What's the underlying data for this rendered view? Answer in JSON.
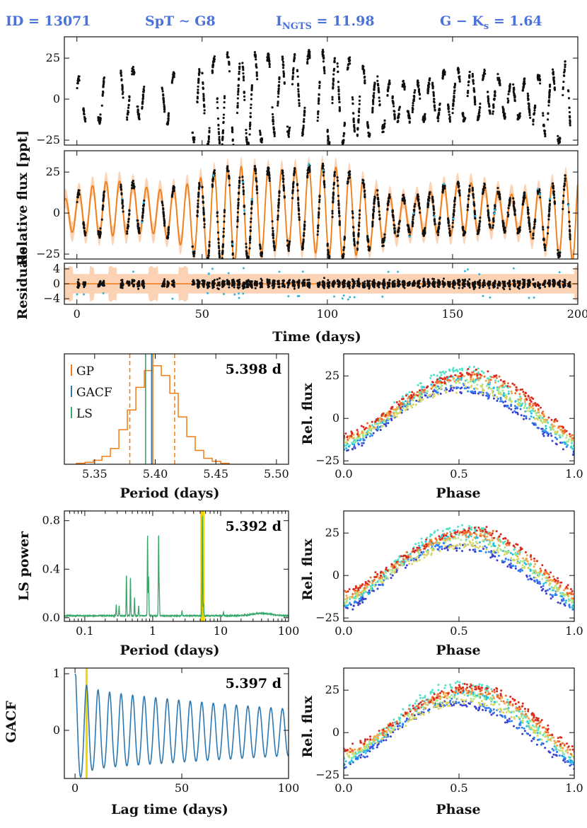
{
  "header": {
    "id_label": "ID = 13071",
    "spt_label": "SpT ∼ G8",
    "mag_label_main": "I",
    "mag_label_sub": "NGTS",
    "mag_label_value": " = 11.98",
    "color_label_g": "G − K",
    "color_label_sub": "s",
    "color_label_value": " = 1.64"
  },
  "colors": {
    "header": "#4a72d9",
    "gp": "#f07d16",
    "gp_band": "#fcd2b4",
    "gacf": "#2e78b0",
    "ls": "#3aa86b",
    "highlight": "#f2d600",
    "data": "#111111",
    "outlier": "#38b6d8"
  },
  "chart_data": [
    {
      "id": "lightcurve",
      "type": "scatter",
      "ylabel": "Relative flux [ppt]",
      "xlim": [
        -5,
        200
      ],
      "ylim": [
        -28,
        38
      ],
      "yticks": [
        -25,
        0,
        25
      ],
      "ytick_labels": [
        "−25",
        "0",
        "25"
      ],
      "observing_windows": [
        [
          0,
          1
        ],
        [
          2.5,
          3.5
        ],
        [
          8.5,
          9.5
        ],
        [
          10,
          11
        ],
        [
          17.5,
          18.5
        ],
        [
          20,
          21
        ],
        [
          22,
          23
        ],
        [
          24,
          25
        ],
        [
          26,
          27
        ],
        [
          34,
          35
        ],
        [
          36,
          37
        ],
        [
          38,
          39
        ],
        [
          46,
          47
        ],
        [
          48,
          49
        ],
        [
          50,
          51
        ],
        [
          52,
          53
        ],
        [
          54,
          55
        ],
        [
          56,
          57
        ],
        [
          58,
          59
        ],
        [
          60,
          61
        ],
        [
          62,
          63
        ],
        [
          64,
          65
        ],
        [
          66,
          67
        ],
        [
          67.5,
          68.5
        ],
        [
          69,
          70
        ],
        [
          71,
          72
        ],
        [
          73,
          74
        ],
        [
          76,
          77
        ],
        [
          78,
          79
        ],
        [
          80,
          81
        ],
        [
          82,
          83
        ],
        [
          84,
          85
        ],
        [
          86,
          87
        ],
        [
          88,
          89
        ],
        [
          90,
          91
        ],
        [
          92,
          93
        ],
        [
          96,
          97
        ],
        [
          98,
          99
        ],
        [
          100,
          101
        ],
        [
          102,
          103
        ],
        [
          104,
          105
        ],
        [
          106,
          107
        ],
        [
          108,
          109
        ],
        [
          110,
          111
        ],
        [
          112,
          113
        ],
        [
          114,
          115
        ],
        [
          116,
          117
        ],
        [
          118,
          119
        ],
        [
          120,
          121
        ],
        [
          122,
          123
        ],
        [
          124,
          125
        ],
        [
          126,
          127
        ],
        [
          128,
          129
        ],
        [
          130,
          131
        ],
        [
          132,
          133
        ],
        [
          134,
          135
        ],
        [
          136,
          137
        ],
        [
          138,
          139
        ],
        [
          140,
          141
        ],
        [
          142,
          143
        ],
        [
          144,
          145
        ],
        [
          146,
          147
        ],
        [
          148,
          149
        ],
        [
          150,
          151
        ],
        [
          152,
          153
        ],
        [
          154,
          155
        ],
        [
          156,
          157
        ],
        [
          158,
          159
        ],
        [
          160,
          161
        ],
        [
          162,
          163
        ],
        [
          164,
          165
        ],
        [
          166,
          167
        ],
        [
          168,
          169
        ],
        [
          170,
          171
        ],
        [
          172,
          173
        ],
        [
          174,
          175
        ],
        [
          176,
          177
        ],
        [
          178,
          179
        ],
        [
          180,
          181
        ],
        [
          182,
          183
        ],
        [
          184,
          185
        ],
        [
          186,
          187
        ],
        [
          188,
          189
        ],
        [
          190,
          191
        ],
        [
          192,
          193
        ],
        [
          194,
          195
        ],
        [
          196,
          197
        ]
      ]
    },
    {
      "id": "gp_model",
      "type": "line",
      "xlim": [
        -5,
        200
      ],
      "ylim": [
        -28,
        38
      ],
      "yticks": [
        -25,
        0,
        25
      ],
      "ytick_labels": [
        "−25",
        "0",
        "25"
      ],
      "period_days": 5.398,
      "amplitude_ppt": [
        17,
        30
      ],
      "band_ppt": 6
    },
    {
      "id": "residuals",
      "type": "scatter",
      "ylabel": "Residuals",
      "xlabel": "Time (days)",
      "xlim": [
        -5,
        200
      ],
      "ylim": [
        -5.5,
        5.5
      ],
      "yticks": [
        -4,
        0,
        4
      ],
      "ytick_labels": [
        "−4",
        "0",
        "4"
      ],
      "xticks": [
        0,
        50,
        100,
        150,
        200
      ],
      "xtick_labels": [
        "0",
        "50",
        "100",
        "150",
        "200"
      ]
    },
    {
      "id": "period_histogram",
      "type": "histogram",
      "xlabel": "Period (days)",
      "xlim": [
        5.325,
        5.51
      ],
      "xticks": [
        5.35,
        5.4,
        5.45,
        5.5
      ],
      "xtick_labels": [
        "5.35",
        "5.40",
        "5.45",
        "5.50"
      ],
      "bin_edges": [
        5.335,
        5.342,
        5.349,
        5.356,
        5.363,
        5.37,
        5.377,
        5.384,
        5.391,
        5.398,
        5.405,
        5.412,
        5.419,
        5.426,
        5.433,
        5.44,
        5.447,
        5.454,
        5.461
      ],
      "counts": [
        1,
        2,
        4,
        8,
        16,
        35,
        55,
        78,
        95,
        100,
        90,
        72,
        48,
        28,
        14,
        6,
        3,
        1
      ],
      "gp_median": 5.398,
      "gp_lower": 5.379,
      "gp_upper": 5.416,
      "gacf_period": 5.397,
      "ls_period": 5.392,
      "legend": [
        "GP",
        "GACF",
        "LS"
      ],
      "label": "5.398 d"
    },
    {
      "id": "ls_periodogram",
      "type": "line",
      "xscale": "log",
      "xlabel": "Period (days)",
      "ylabel": "LS power",
      "xlim": [
        0.05,
        100
      ],
      "ylim": [
        -0.03,
        0.88
      ],
      "xticks": [
        0.1,
        1,
        10,
        100
      ],
      "xtick_labels": [
        "0.1",
        "1",
        "10",
        "100"
      ],
      "yticks": [
        0.0,
        0.4,
        0.8
      ],
      "ytick_labels": [
        "0.0",
        "0.4",
        "0.8"
      ],
      "peaks": [
        [
          0.29,
          0.09
        ],
        [
          0.32,
          0.08
        ],
        [
          0.41,
          0.34
        ],
        [
          0.47,
          0.32
        ],
        [
          0.54,
          0.15
        ],
        [
          0.62,
          0.08
        ],
        [
          0.84,
          0.67
        ],
        [
          0.87,
          0.32
        ],
        [
          1.22,
          0.67
        ],
        [
          1.25,
          0.2
        ],
        [
          2.7,
          0.04
        ],
        [
          5.392,
          0.82
        ],
        [
          5.6,
          0.1
        ],
        [
          11,
          0.03
        ]
      ],
      "highlight_period": 5.392,
      "label": "5.392 d"
    },
    {
      "id": "gacf",
      "type": "line",
      "xlabel": "Lag time (days)",
      "ylabel": "GACF",
      "xlim": [
        -5,
        100
      ],
      "ylim": [
        -0.85,
        1.1
      ],
      "xticks": [
        0,
        50,
        100
      ],
      "xtick_labels": [
        "0",
        "50",
        "100"
      ],
      "yticks": [
        0,
        1
      ],
      "ytick_labels": [
        "0",
        "1"
      ],
      "period": 5.397,
      "highlight_lag": 5.397,
      "label": "5.397 d"
    },
    {
      "id": "phase_fold",
      "type": "scatter",
      "ylabel": "Rel. flux",
      "xlabel": "Phase",
      "xlim": [
        0,
        1
      ],
      "ylim": [
        -27,
        38
      ],
      "xticks": [
        0.0,
        0.5,
        1.0
      ],
      "xtick_labels": [
        "0.0",
        "0.5",
        "1.0"
      ],
      "yticks": [
        -25,
        0,
        25
      ],
      "ytick_labels": [
        "−25",
        "0",
        "25"
      ],
      "curve_peak_phase": 0.52,
      "curve_min_ppt": -15,
      "curve_max_ppt": 22,
      "colormap": [
        "#3a3fd0",
        "#2f7ef2",
        "#22c0e0",
        "#52e2c8",
        "#a7e88a",
        "#d8d463",
        "#f4a64a",
        "#f06a2e",
        "#d9281e"
      ]
    }
  ]
}
